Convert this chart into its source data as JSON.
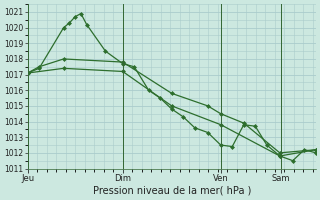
{
  "title": "Pression niveau de la mer( hPa )",
  "background_color": "#cce8e0",
  "grid_color": "#aacccc",
  "line_color": "#2d6e2d",
  "ylim": [
    1011,
    1021.5
  ],
  "yticks": [
    1011,
    1012,
    1013,
    1014,
    1015,
    1016,
    1017,
    1018,
    1019,
    1020,
    1021
  ],
  "day_labels": [
    "Jeu",
    "Dim",
    "Ven",
    "Sam"
  ],
  "day_positions": [
    0.0,
    0.33,
    0.67,
    0.88
  ],
  "xlim": [
    0.0,
    1.0
  ],
  "series": [
    {
      "x": [
        0.0,
        0.04,
        0.125,
        0.145,
        0.165,
        0.185,
        0.205,
        0.27,
        0.33,
        0.37,
        0.42,
        0.46,
        0.5,
        0.54,
        0.58,
        0.625,
        0.67,
        0.71,
        0.75,
        0.79,
        0.83,
        0.875,
        0.92,
        0.96,
        1.0
      ],
      "y": [
        1017.1,
        1017.4,
        1020.0,
        1020.3,
        1020.7,
        1020.9,
        1020.2,
        1018.5,
        1017.7,
        1017.5,
        1016.0,
        1015.5,
        1014.8,
        1014.3,
        1013.6,
        1013.3,
        1012.5,
        1012.4,
        1013.8,
        1013.7,
        1012.5,
        1011.8,
        1011.5,
        1012.2,
        1012.0
      ],
      "marker": "D",
      "markersize": 2.0
    },
    {
      "x": [
        0.0,
        0.04,
        0.125,
        0.33,
        0.5,
        0.625,
        0.67,
        0.75,
        0.875,
        1.0
      ],
      "y": [
        1017.1,
        1017.5,
        1018.0,
        1017.8,
        1015.8,
        1015.0,
        1014.5,
        1013.9,
        1012.0,
        1012.2
      ],
      "marker": "D",
      "markersize": 2.0
    },
    {
      "x": [
        0.0,
        0.125,
        0.33,
        0.5,
        0.67,
        0.875,
        1.0
      ],
      "y": [
        1017.1,
        1017.4,
        1017.2,
        1015.0,
        1013.8,
        1011.8,
        1012.2
      ],
      "marker": "D",
      "markersize": 2.0
    }
  ]
}
